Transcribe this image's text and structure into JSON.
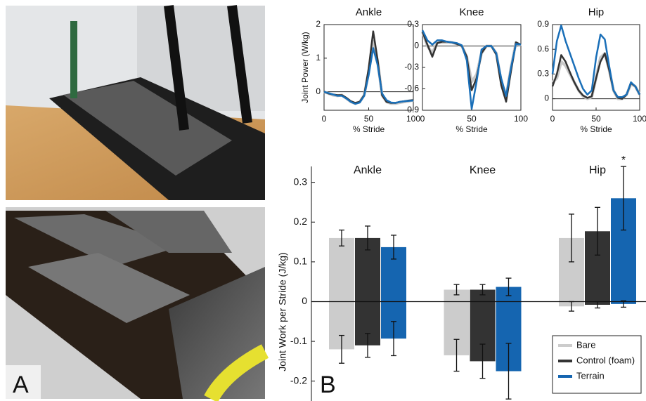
{
  "panels": {
    "a": "A",
    "b": "B"
  },
  "chart_data": [
    {
      "type": "line",
      "title": "Ankle",
      "xlabel": "% Stride",
      "ylabel": "Joint Power (W/kg)",
      "x": [
        0,
        5,
        10,
        15,
        20,
        25,
        30,
        35,
        40,
        45,
        50,
        55,
        60,
        65,
        70,
        75,
        80,
        85,
        90,
        95,
        100
      ],
      "xlim": [
        0,
        100
      ],
      "xticks": [
        0,
        50,
        100
      ],
      "ylim": [
        -0.55,
        2
      ],
      "yticks": [
        0,
        1,
        2
      ],
      "series": [
        {
          "color": "#c8c8c8",
          "values": [
            0,
            -0.05,
            -0.1,
            -0.12,
            -0.1,
            -0.2,
            -0.3,
            -0.35,
            -0.3,
            -0.1,
            0.6,
            1.5,
            0.9,
            -0.1,
            -0.3,
            -0.35,
            -0.35,
            -0.32,
            -0.3,
            -0.28,
            -0.25
          ]
        },
        {
          "color": "#333333",
          "values": [
            0,
            -0.05,
            -0.08,
            -0.1,
            -0.1,
            -0.18,
            -0.28,
            -0.33,
            -0.3,
            -0.1,
            0.7,
            1.8,
            0.95,
            -0.1,
            -0.3,
            -0.33,
            -0.33,
            -0.3,
            -0.28,
            -0.26,
            -0.25
          ]
        },
        {
          "color": "#1a6fb8",
          "values": [
            0,
            -0.04,
            -0.08,
            -0.12,
            -0.12,
            -0.2,
            -0.3,
            -0.36,
            -0.32,
            -0.12,
            0.5,
            1.3,
            0.8,
            -0.05,
            -0.25,
            -0.32,
            -0.33,
            -0.3,
            -0.28,
            -0.27,
            -0.26
          ]
        }
      ]
    },
    {
      "type": "line",
      "title": "Knee",
      "xlabel": "% Stride",
      "x": [
        0,
        5,
        10,
        15,
        20,
        25,
        30,
        35,
        40,
        45,
        50,
        55,
        60,
        65,
        70,
        75,
        80,
        85,
        90,
        95,
        100
      ],
      "xlim": [
        0,
        100
      ],
      "xticks": [
        0,
        50,
        100
      ],
      "ylim": [
        -0.9,
        0.3
      ],
      "yticks": [
        -0.9,
        -0.6,
        -0.3,
        0,
        0.3
      ],
      "series": [
        {
          "color": "#c8c8c8",
          "values": [
            0.2,
            0,
            -0.1,
            0.05,
            0.05,
            0.05,
            0.05,
            0.03,
            0,
            -0.15,
            -0.5,
            -0.4,
            -0.1,
            0,
            0,
            -0.1,
            -0.5,
            -0.7,
            -0.3,
            0.05,
            0
          ]
        },
        {
          "color": "#333333",
          "values": [
            0.2,
            0.02,
            -0.15,
            0.04,
            0.06,
            0.06,
            0.05,
            0.03,
            0,
            -0.15,
            -0.62,
            -0.45,
            -0.1,
            0,
            0,
            -0.12,
            -0.55,
            -0.78,
            -0.35,
            0.05,
            0.02
          ]
        },
        {
          "color": "#1a6fb8",
          "values": [
            0.22,
            0.08,
            0.02,
            0.08,
            0.08,
            0.06,
            0.05,
            0.04,
            0.01,
            -0.2,
            -0.88,
            -0.5,
            -0.05,
            0,
            0,
            -0.1,
            -0.45,
            -0.7,
            -0.3,
            0.03,
            0.02
          ]
        }
      ]
    },
    {
      "type": "line",
      "title": "Hip",
      "xlabel": "% Stride",
      "x": [
        0,
        5,
        10,
        15,
        20,
        25,
        30,
        35,
        40,
        45,
        50,
        55,
        60,
        65,
        70,
        75,
        80,
        85,
        90,
        95,
        100
      ],
      "xlim": [
        0,
        100
      ],
      "xticks": [
        0,
        50,
        100
      ],
      "ylim": [
        -0.14,
        0.9
      ],
      "yticks": [
        0,
        0.3,
        0.6,
        0.9
      ],
      "series": [
        {
          "color": "#c8c8c8",
          "values": [
            0.2,
            0.25,
            0.45,
            0.4,
            0.3,
            0.2,
            0.1,
            0.03,
            0,
            0.02,
            0.25,
            0.5,
            0.55,
            0.35,
            0.1,
            0,
            0,
            0.05,
            0.18,
            0.15,
            0.05
          ]
        },
        {
          "color": "#333333",
          "values": [
            0.15,
            0.3,
            0.53,
            0.45,
            0.32,
            0.2,
            0.1,
            0.04,
            0.01,
            0.03,
            0.25,
            0.45,
            0.55,
            0.35,
            0.1,
            0.01,
            0,
            0.05,
            0.19,
            0.15,
            0.05
          ]
        },
        {
          "color": "#1a6fb8",
          "values": [
            0.3,
            0.7,
            0.89,
            0.7,
            0.55,
            0.4,
            0.25,
            0.12,
            0.05,
            0.1,
            0.5,
            0.78,
            0.72,
            0.4,
            0.1,
            0.02,
            0.02,
            0.05,
            0.2,
            0.15,
            0.05
          ]
        }
      ]
    },
    {
      "type": "bar",
      "ylabel": "Joint Work per Stride (J/kg)",
      "categories": [
        "Ankle",
        "Knee",
        "Hip"
      ],
      "ylim": [
        -0.25,
        0.34
      ],
      "yticks": [
        -0.2,
        -0.1,
        0,
        0.1,
        0.2,
        0.3
      ],
      "legend": "lower right",
      "series": [
        {
          "name": "Bare",
          "color": "#cccccc",
          "values": [
            0.16,
            0.03,
            0.16
          ],
          "errors": [
            0.02,
            0.013,
            0.06
          ],
          "negative_values": [
            -0.12,
            -0.135,
            -0.012
          ],
          "negative_errors": [
            0.035,
            0.04,
            0.012
          ]
        },
        {
          "name": "Control (foam)",
          "color": "#333333",
          "values": [
            0.16,
            0.03,
            0.177
          ],
          "errors": [
            0.03,
            0.013,
            0.06
          ],
          "negative_values": [
            -0.11,
            -0.15,
            -0.008
          ],
          "negative_errors": [
            0.03,
            0.043,
            0.008
          ]
        },
        {
          "name": "Terrain",
          "color": "#1565b0",
          "values": [
            0.137,
            0.037,
            0.26
          ],
          "errors": [
            0.03,
            0.022,
            0.08
          ],
          "negative_values": [
            -0.093,
            -0.175,
            -0.006
          ],
          "negative_errors": [
            0.043,
            0.07,
            0.008
          ]
        }
      ],
      "annotations": [
        {
          "text": "*",
          "category": "Hip",
          "series": "Terrain"
        }
      ]
    }
  ]
}
